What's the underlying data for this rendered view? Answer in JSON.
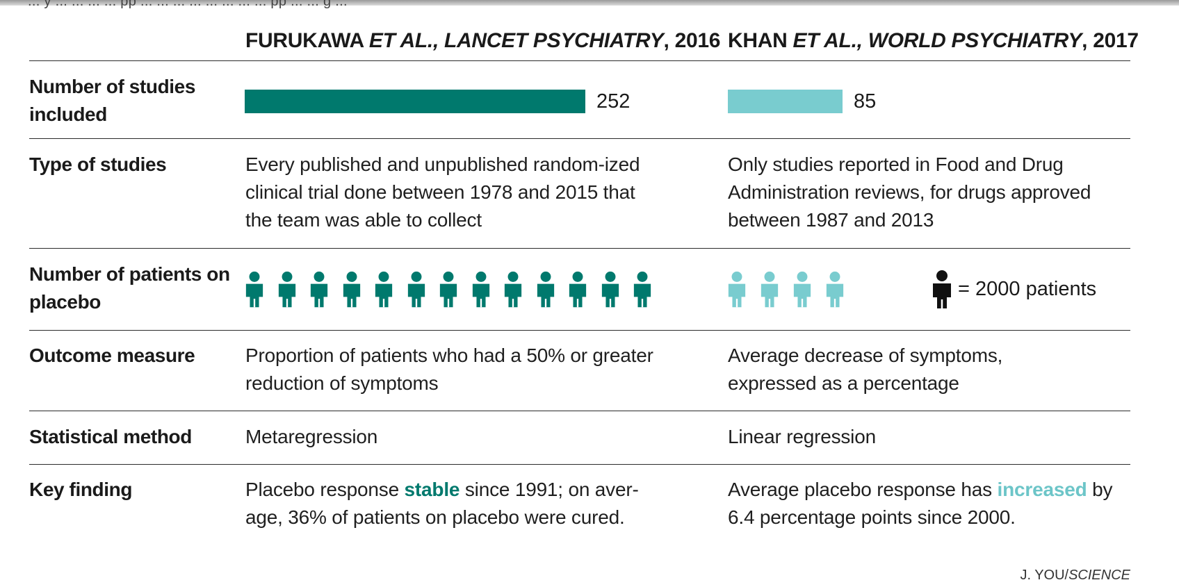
{
  "header": {
    "cut_text": "... y ... ... ... ... pp ... ... ... ... ... ... ... ... pp ... ... g ...",
    "col1": {
      "authors": "FURUKAWA",
      "etal": "ET AL.,",
      "journal": "LANCET PSYCHIATRY",
      "year": ", 2016"
    },
    "col2": {
      "authors": "KHAN",
      "etal": "ET AL.,",
      "journal": "WORLD PSYCHIATRY",
      "year": ", 2017"
    }
  },
  "rows": {
    "studies": {
      "label": "Number of studies included"
    },
    "type": {
      "label": "Type of studies",
      "col1": "Every published and unpublished random-ized clinical trial done between 1978 and 2015 that the team was able to collect",
      "col2": "Only studies reported in Food and Drug Administration reviews, for drugs approved between 1987 and 2013"
    },
    "patients": {
      "label": "Number of patients on placebo"
    },
    "outcome": {
      "label": "Outcome measure",
      "col1": "Proportion of patients who had a 50% or greater reduction of symptoms",
      "col2": "Average decrease of symptoms, expressed as a percentage"
    },
    "method": {
      "label": "Statistical method",
      "col1": "Metaregression",
      "col2": "Linear regression"
    },
    "finding": {
      "label": "Key finding",
      "col1_pre": "Placebo response",
      "col1_hl": "stable",
      "col1_post": "since 1991; on aver-age, 36% of patients on placebo were cured.",
      "col2_pre": "Average placebo response has",
      "col2_hl": "increased",
      "col2_post": "by 6.4 percentage points since 2000."
    }
  },
  "legend": {
    "text": "= 2000 patients"
  },
  "credit": {
    "name": "J. YOU/",
    "outlet": "SCIENCE"
  },
  "colors": {
    "dark_teal": "#00796d",
    "light_teal": "#79cccf",
    "legend_icon": "#111111"
  },
  "chart_data": [
    {
      "type": "bar",
      "categories": [
        "FURUKAWA ET AL., LANCET PSYCHIATRY, 2016",
        "KHAN ET AL., WORLD PSYCHIATRY, 2017"
      ],
      "series": [
        {
          "values": [
            252,
            85
          ]
        }
      ],
      "ylabel": "Number of studies included"
    },
    {
      "type": "pictogram",
      "categories": [
        "FURUKAWA ET AL., LANCET PSYCHIATRY, 2016",
        "KHAN ET AL., WORLD PSYCHIATRY, 2017"
      ],
      "icon_unit": 2000,
      "icon_counts": [
        13,
        4
      ],
      "ylabel": "Number of patients on placebo"
    }
  ]
}
